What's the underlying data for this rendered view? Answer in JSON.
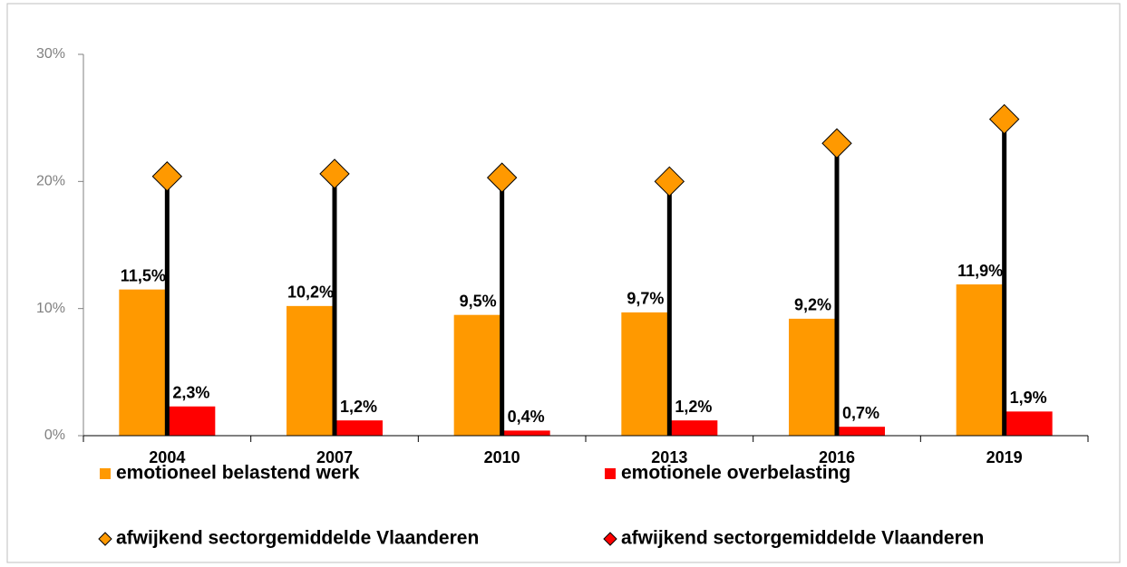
{
  "chart_data": {
    "type": "bar",
    "categories": [
      "2004",
      "2007",
      "2010",
      "2013",
      "2016",
      "2019"
    ],
    "series": [
      {
        "name": "emotioneel belastend werk",
        "color": "#ff9900",
        "kind": "bar",
        "values": [
          11.5,
          10.2,
          9.5,
          9.7,
          9.2,
          11.9
        ],
        "value_labels": [
          "11,5%",
          "10,2%",
          "9,5%",
          "9,7%",
          "9,2%",
          "11,9%"
        ]
      },
      {
        "name": "emotionele overbelasting",
        "color": "#ff0000",
        "kind": "bar",
        "values": [
          2.3,
          1.2,
          0.4,
          1.2,
          0.7,
          1.9
        ],
        "value_labels": [
          "2,3%",
          "1,2%",
          "0,4%",
          "1,2%",
          "0,7%",
          "1,9%"
        ]
      },
      {
        "name": "afwijkend sectorgemiddelde Vlaanderen",
        "color": "#ff9900",
        "kind": "diamond",
        "values": [
          20.4,
          20.6,
          20.3,
          20.0,
          23.0,
          24.9
        ]
      },
      {
        "name": "afwijkend sectorgemiddelde Vlaanderen",
        "color": "#ff0000",
        "kind": "diamond",
        "values": [
          null,
          null,
          null,
          null,
          null,
          null
        ]
      }
    ],
    "ylim": [
      0,
      30
    ],
    "yticks": [
      {
        "value": 0,
        "label": "0%"
      },
      {
        "value": 10,
        "label": "10%"
      },
      {
        "value": 20,
        "label": "20%"
      },
      {
        "value": 30,
        "label": "30%"
      }
    ],
    "drop_lines": true,
    "grid": false
  }
}
